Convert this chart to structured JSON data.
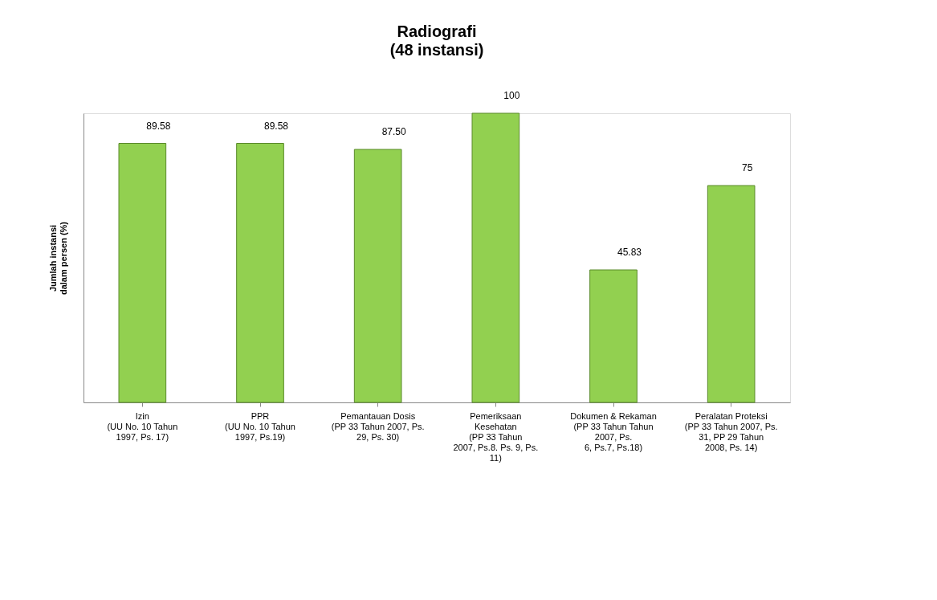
{
  "chart_data": {
    "type": "bar",
    "title": "Radiografi",
    "subtitle": "(48 instansi)",
    "ylabel": "Jumlah instansi\ndalam persen (%)",
    "categories": [
      "Izin\n(UU No. 10 Tahun\n1997, Ps. 17)",
      "PPR\n(UU No. 10 Tahun\n1997, Ps.19)",
      "Pemantauan Dosis\n(PP 33 Tahun 2007, Ps.\n29, Ps. 30)",
      "Pemeriksaan\nKesehatan\n(PP 33 Tahun\n2007, Ps.8. Ps. 9, Ps.\n11)",
      "Dokumen & Rekaman\n(PP 33 Tahun Tahun\n2007, Ps.\n6, Ps.7, Ps.18)",
      "Peralatan Proteksi\n(PP 33 Tahun 2007, Ps.\n31, PP 29 Tahun\n2008, Ps. 14)"
    ],
    "values": [
      89.58,
      89.58,
      87.5,
      100,
      45.83,
      75
    ],
    "value_labels": [
      "89.58",
      "89.58",
      "87.50",
      "100",
      "45.83",
      "75"
    ],
    "color": "#92d050",
    "ylim": [
      0,
      100
    ],
    "grid": false
  }
}
